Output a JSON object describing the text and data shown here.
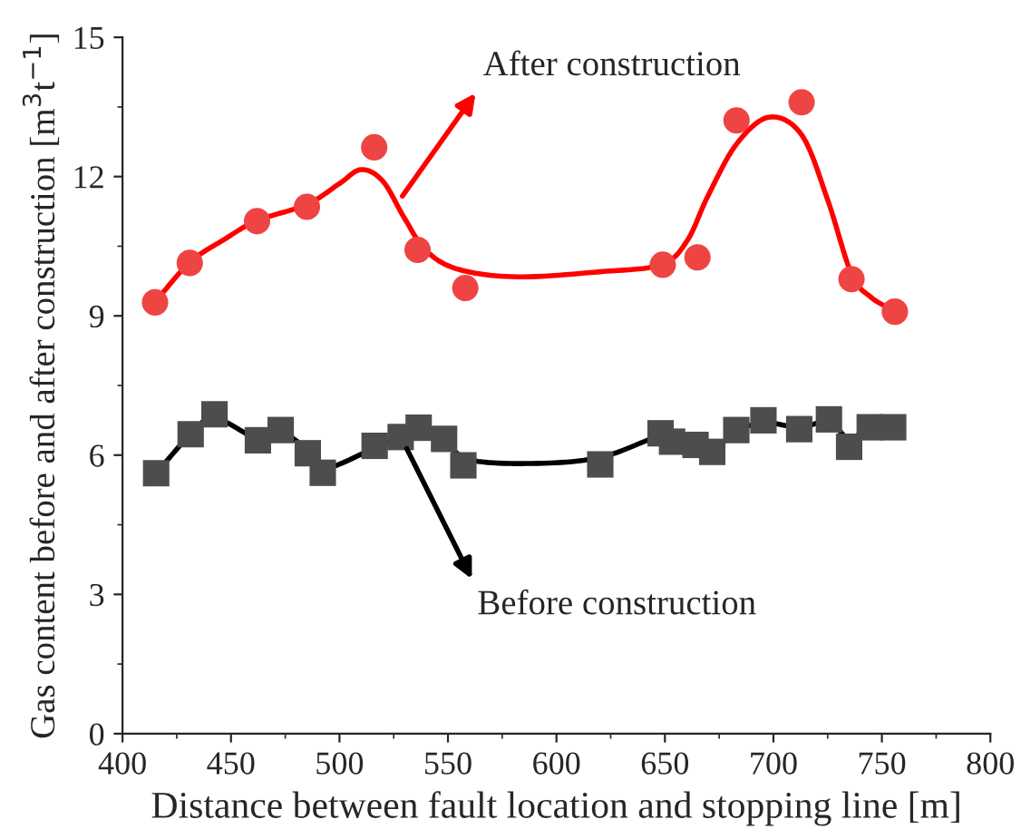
{
  "chart_data": {
    "type": "scatter",
    "xlabel": "Distance between fault location and stopping line [m]",
    "ylabel": "Gas content before and after construction [m$^{3}$t$^{−1}$]",
    "xlim": [
      400,
      800
    ],
    "xticks": [
      400,
      450,
      500,
      550,
      600,
      650,
      700,
      750,
      800
    ],
    "ylim": [
      0,
      15
    ],
    "yticks": [
      0,
      3,
      6,
      9,
      12,
      15
    ],
    "grid": false,
    "legend": false,
    "series": [
      {
        "type": "line",
        "color": "#ff0000",
        "x": [
          415,
          431,
          447,
          462,
          485,
          500,
          510,
          520,
          530,
          540,
          555,
          582,
          620,
          648,
          660,
          670,
          683,
          698,
          713,
          725,
          736,
          745,
          756
        ],
        "values": [
          9.3,
          10.15,
          10.65,
          11.05,
          11.4,
          11.85,
          12.15,
          11.9,
          11.1,
          10.4,
          10.0,
          9.84,
          9.95,
          10.1,
          10.6,
          11.6,
          12.7,
          13.28,
          12.9,
          11.5,
          9.9,
          9.4,
          9.1
        ],
        "marker": "none",
        "line_style": "solid"
      },
      {
        "color": "#ee4444",
        "marker": "circle",
        "x": [
          415,
          431,
          462,
          485,
          516,
          536,
          558,
          649,
          665,
          683,
          713,
          736,
          756
        ],
        "values": [
          9.29,
          10.14,
          11.04,
          11.35,
          12.63,
          10.42,
          9.6,
          10.1,
          10.26,
          13.21,
          13.6,
          9.79,
          9.09
        ]
      },
      {
        "type": "line",
        "color": "#000000",
        "x": [
          415.5,
          431.4,
          442.4,
          462.4,
          472.9,
          485.4,
          492.3,
          516.2,
          528.2,
          536.5,
          548.2,
          560,
          589,
          620.2,
          648,
          653.3,
          664.1,
          671.8,
          682.9,
          695.4,
          711.9,
          725.6,
          734.9,
          744.4,
          755.2
        ],
        "values": [
          5.61,
          6.45,
          6.8,
          6.35,
          6.5,
          6.1,
          5.7,
          6.15,
          6.39,
          6.55,
          6.3,
          5.9,
          5.82,
          5.95,
          6.42,
          6.3,
          6.2,
          6.1,
          6.5,
          6.7,
          6.6,
          6.72,
          6.35,
          6.6,
          6.6
        ],
        "marker": "none",
        "line_style": "solid"
      },
      {
        "color": "#4d4d4d",
        "marker": "square",
        "x": [
          415.5,
          431.4,
          442.4,
          462.4,
          472.9,
          485.4,
          492.3,
          516.2,
          528.2,
          536.5,
          548.2,
          557.1,
          620.2,
          648,
          653.3,
          664.1,
          671.8,
          682.9,
          695.4,
          711.9,
          725.6,
          734.9,
          744.4,
          755.2
        ],
        "values": [
          5.61,
          6.45,
          6.88,
          6.32,
          6.54,
          6.04,
          5.62,
          6.2,
          6.39,
          6.59,
          6.35,
          5.78,
          5.8,
          6.47,
          6.29,
          6.22,
          6.07,
          6.54,
          6.75,
          6.56,
          6.77,
          6.18,
          6.6,
          6.6
        ]
      }
    ],
    "annotations": [
      {
        "text": "After construction",
        "x": 529,
        "y": 11.58
      },
      {
        "text": "Before construction",
        "x": 531,
        "y": 6.14
      }
    ]
  }
}
